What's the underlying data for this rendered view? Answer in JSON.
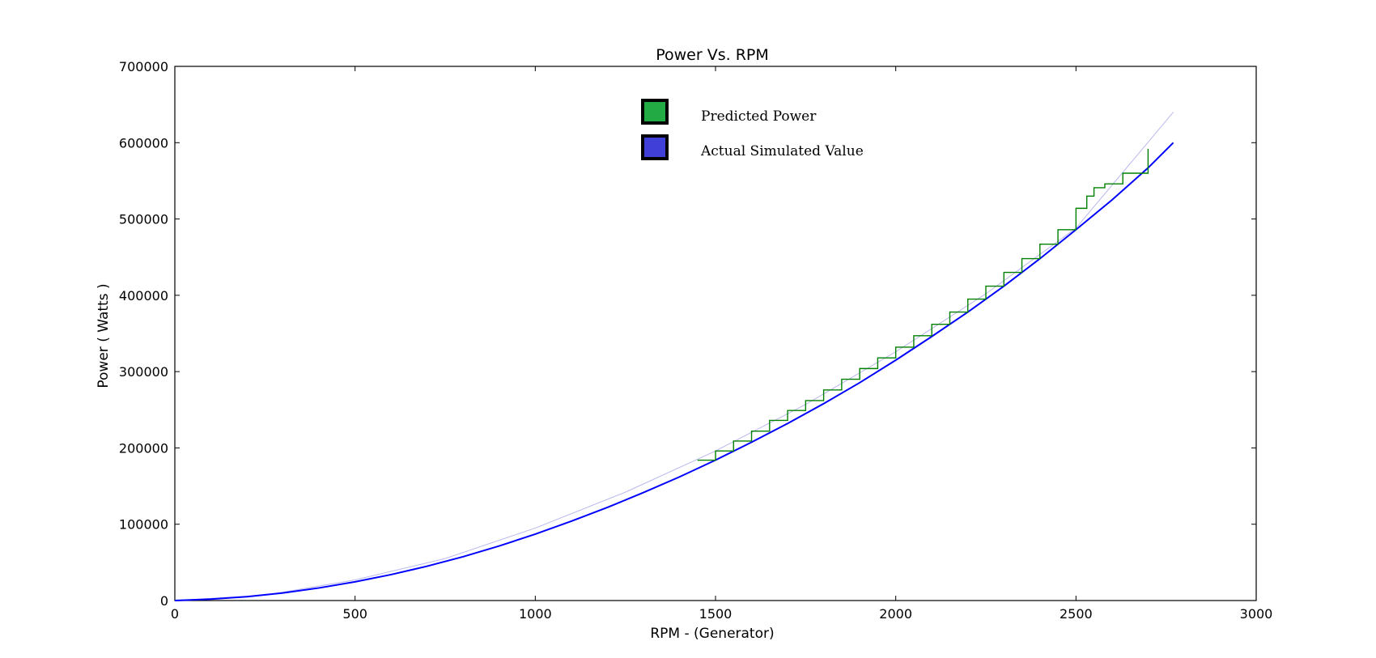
{
  "chart_data": {
    "type": "line",
    "title": "Power Vs. RPM",
    "xlabel": "RPM - (Generator)",
    "ylabel": "Power ( Watts )",
    "xlim": [
      0,
      3000
    ],
    "ylim": [
      0,
      700000
    ],
    "xticks": [
      "0",
      "500",
      "1000",
      "1500",
      "2000",
      "2500",
      "3000"
    ],
    "yticks": [
      "0",
      "100000",
      "200000",
      "300000",
      "400000",
      "500000",
      "600000",
      "700000"
    ],
    "grid": false,
    "legend_position": "top-center",
    "legend": [
      {
        "name": "Predicted Power",
        "color": "#22aa44"
      },
      {
        "name": "Actual Simulated Value",
        "color": "#4040d8"
      }
    ],
    "series": [
      {
        "name": "Predicted Power",
        "style": "step",
        "color": "#008000",
        "x": [
          1450,
          1500,
          1550,
          1600,
          1650,
          1700,
          1750,
          1800,
          1850,
          1900,
          1950,
          2000,
          2050,
          2100,
          2150,
          2200,
          2250,
          2300,
          2350,
          2400,
          2450,
          2500,
          2530,
          2550,
          2580,
          2630,
          2700
        ],
        "y": [
          184000,
          196000,
          209000,
          222000,
          236000,
          249000,
          262000,
          276000,
          290000,
          304000,
          318000,
          332000,
          347000,
          362000,
          378000,
          395000,
          412000,
          430000,
          448000,
          467000,
          486000,
          514000,
          530000,
          541000,
          546000,
          560000,
          592000
        ]
      },
      {
        "name": "Actual Simulated Value",
        "style": "line",
        "color": "#0000ff",
        "x": [
          0,
          100,
          200,
          300,
          400,
          500,
          600,
          700,
          800,
          900,
          1000,
          1100,
          1200,
          1300,
          1400,
          1500,
          1600,
          1700,
          1800,
          1900,
          2000,
          2100,
          2200,
          2300,
          2400,
          2500,
          2600,
          2700,
          2770
        ],
        "y": [
          0,
          1800,
          5000,
          10000,
          16500,
          24500,
          34000,
          45000,
          57500,
          71500,
          87000,
          104000,
          122000,
          141500,
          162000,
          184000,
          207500,
          232000,
          258000,
          285500,
          315000,
          346000,
          378000,
          412000,
          448000,
          486000,
          525000,
          567000,
          600000
        ]
      },
      {
        "name": "Actual Simulated Value (faint trace)",
        "style": "line",
        "color": "#b8b8ee",
        "x": [
          0,
          250,
          500,
          750,
          1000,
          1250,
          1500,
          1750,
          2000,
          2250,
          2500,
          2770
        ],
        "y": [
          0,
          7000,
          27000,
          55000,
          95000,
          142000,
          196000,
          257000,
          326000,
          402000,
          488000,
          640000
        ]
      }
    ]
  }
}
